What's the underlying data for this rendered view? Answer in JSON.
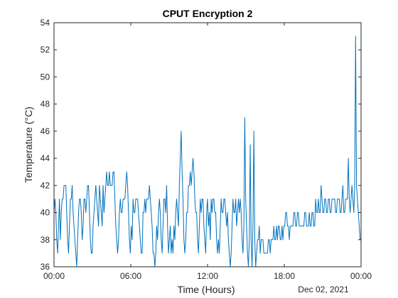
{
  "chart_data": {
    "type": "line",
    "title": "CPUT Encryption 2",
    "xlabel": "Time (Hours)",
    "ylabel": "Temperature (°C)",
    "date_label": "Dec 02, 2021",
    "xlim": [
      "00:00",
      "24:00"
    ],
    "ylim": [
      36,
      54
    ],
    "x_ticks": [
      {
        "hour": 0,
        "label": "00:00"
      },
      {
        "hour": 6,
        "label": "06:00"
      },
      {
        "hour": 12,
        "label": "12:00"
      },
      {
        "hour": 18,
        "label": "18:00"
      },
      {
        "hour": 24,
        "label": "00:00"
      }
    ],
    "y_ticks": [
      36,
      38,
      40,
      42,
      44,
      46,
      48,
      50,
      52,
      54
    ],
    "grid": false,
    "line_color": "#0072BD",
    "series": [
      {
        "x_start": "00:00",
        "x_end": "24:00",
        "values": [
          40,
          41,
          40,
          38,
          37,
          39,
          41,
          38,
          40,
          41,
          41,
          42,
          42,
          42,
          40,
          38,
          37,
          39,
          41,
          41,
          42,
          40,
          39,
          38,
          37,
          36,
          38,
          40,
          41,
          41,
          40,
          38,
          39,
          41,
          41,
          40,
          41,
          42,
          42,
          40,
          38,
          37,
          37,
          39,
          40,
          41,
          42,
          41,
          40,
          39,
          42,
          41,
          40,
          39,
          42,
          40,
          41,
          42,
          43,
          42,
          42,
          43,
          42,
          42,
          42,
          43,
          43,
          41,
          39,
          38,
          37,
          38,
          40,
          41,
          40,
          40,
          41,
          41,
          41,
          42,
          43,
          42,
          40,
          38,
          37,
          39,
          38,
          41,
          40,
          40,
          41,
          41,
          41,
          40,
          39,
          38,
          37,
          37,
          40,
          40,
          41,
          40,
          41,
          41,
          41,
          42,
          41,
          40,
          39,
          37,
          37,
          36,
          37,
          39,
          38,
          40,
          41,
          40,
          38,
          37,
          39,
          41,
          41,
          40,
          42,
          39,
          37,
          38,
          39,
          37,
          38,
          37,
          39,
          38,
          40,
          41,
          40,
          39,
          42,
          44,
          46,
          43,
          41,
          38,
          37,
          38,
          40,
          40,
          42,
          42,
          43,
          42,
          43,
          44,
          43,
          41,
          40,
          40,
          38,
          37,
          39,
          41,
          40,
          41,
          41,
          39,
          38,
          37,
          40,
          41,
          39,
          40,
          38,
          41,
          40,
          41,
          41,
          40,
          40,
          38,
          37,
          38,
          37,
          39,
          41,
          40,
          40,
          41,
          41,
          40,
          39,
          40,
          38,
          37,
          36,
          37,
          39,
          41,
          40,
          40,
          41,
          39,
          40,
          41,
          40,
          41,
          40,
          38,
          37,
          39,
          47,
          41,
          39,
          37,
          36,
          38,
          45,
          38,
          36,
          39,
          46,
          38,
          36,
          37,
          38,
          38,
          39,
          37,
          38,
          38,
          38,
          37,
          37,
          37,
          37,
          37,
          38,
          38,
          37,
          38,
          38,
          38,
          39,
          38,
          38,
          39,
          38,
          39,
          39,
          38,
          38,
          39,
          38,
          39,
          39,
          40,
          40,
          39,
          39,
          38,
          39,
          39,
          39,
          39,
          40,
          40,
          39,
          39,
          40,
          40,
          39,
          39,
          39,
          39,
          39,
          39,
          40,
          40,
          39,
          39,
          39,
          40,
          39,
          39,
          40,
          40,
          39,
          39,
          41,
          40,
          40,
          41,
          40,
          40,
          42,
          41,
          40,
          40,
          41,
          41,
          40,
          40,
          41,
          41,
          40,
          40,
          41,
          41,
          41,
          41,
          40,
          40,
          41,
          41,
          41,
          40,
          40,
          41,
          42,
          40,
          40,
          41,
          41,
          41,
          44,
          41,
          40,
          41,
          42,
          41,
          40,
          42,
          53,
          42,
          41,
          40,
          39,
          38,
          38
        ]
      }
    ]
  }
}
